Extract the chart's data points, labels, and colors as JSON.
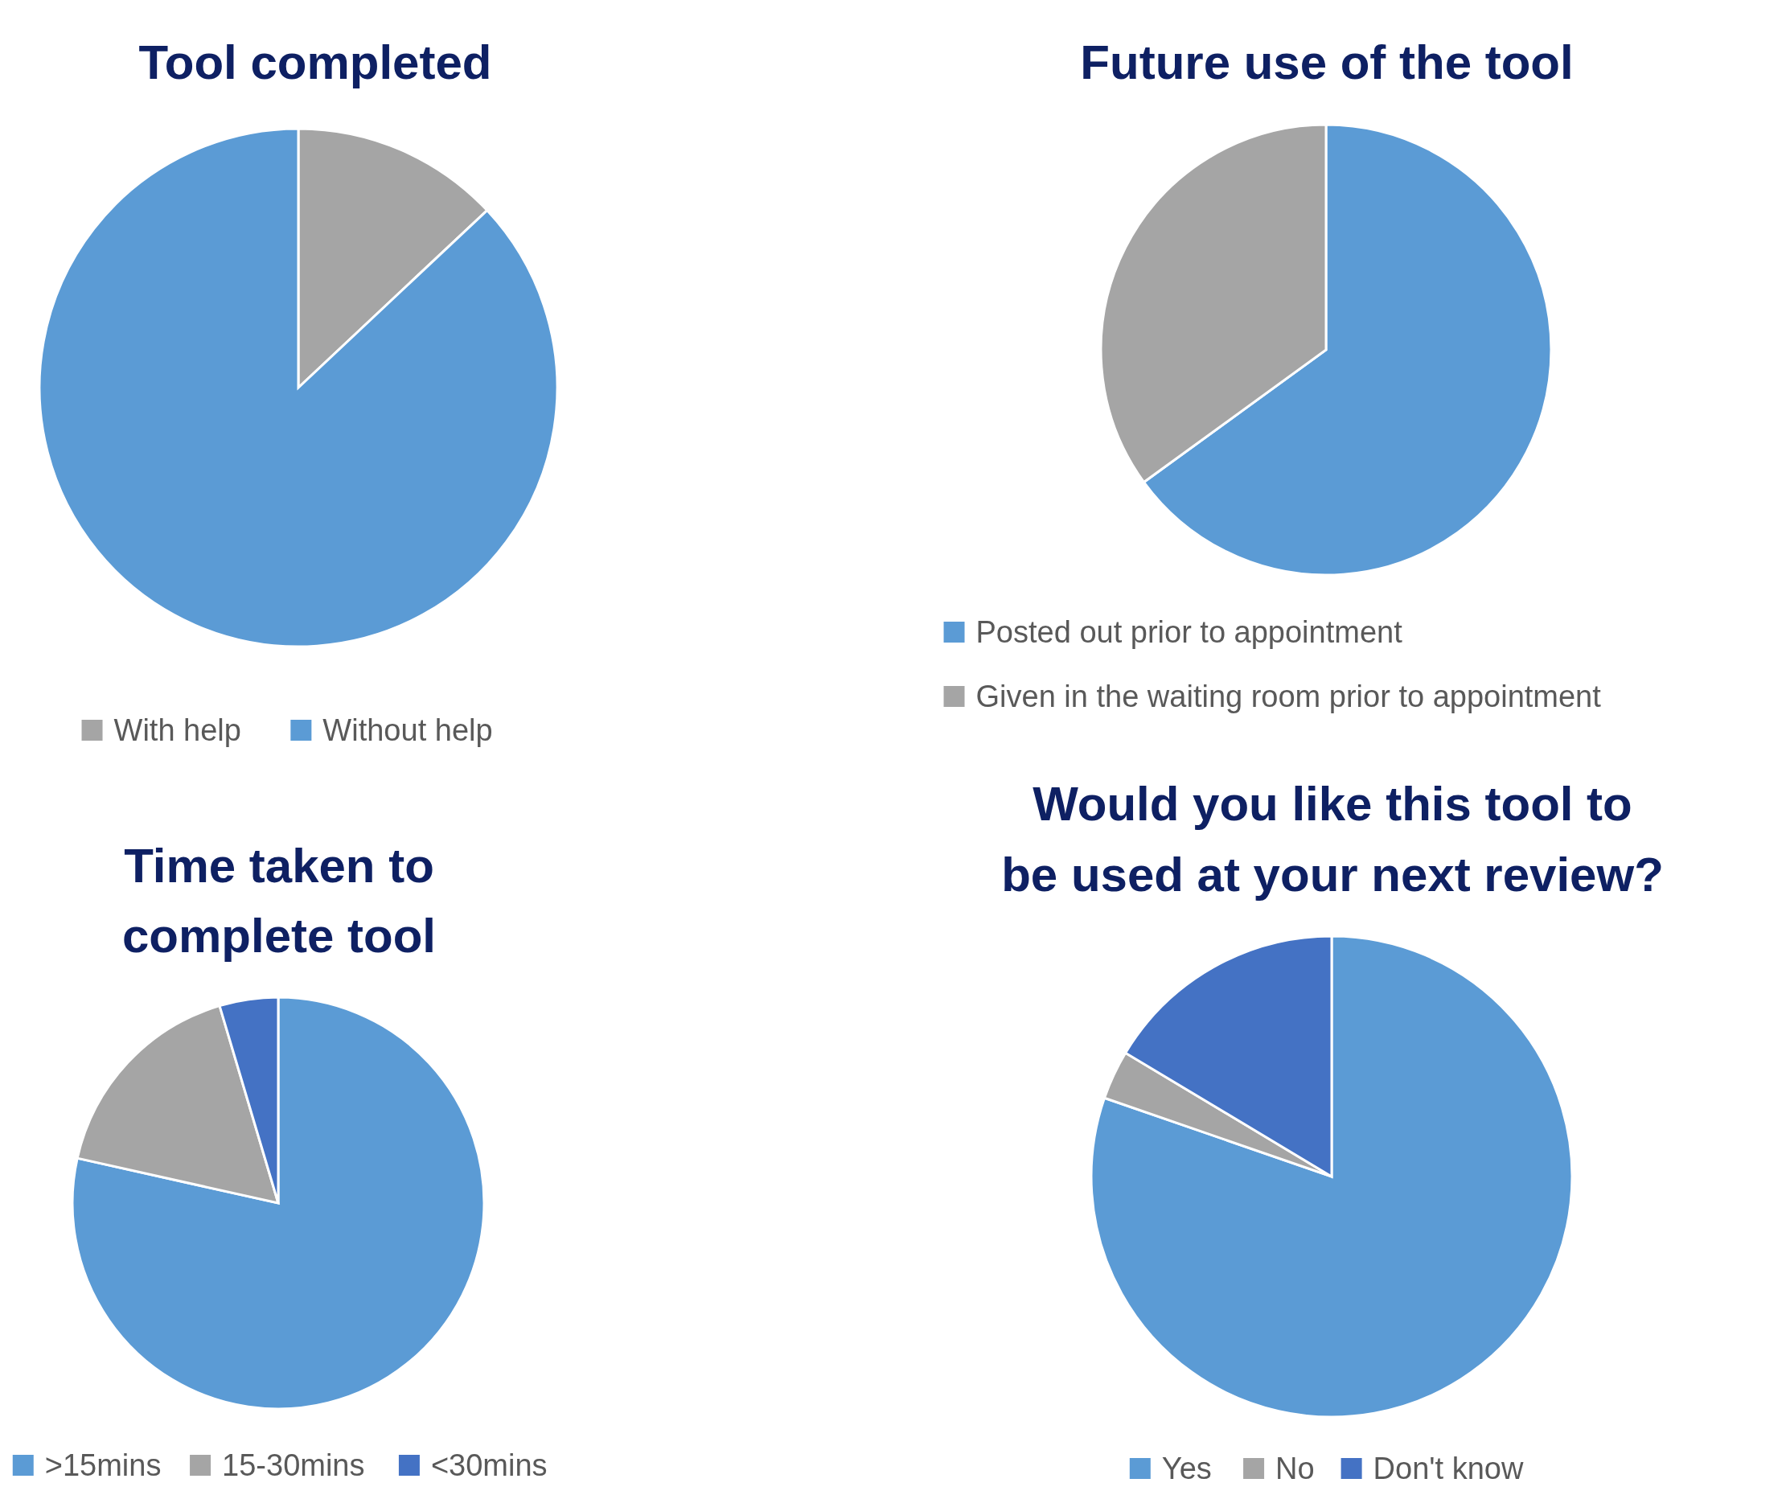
{
  "chart_data": [
    {
      "type": "pie",
      "title": "Tool completed",
      "categories": [
        "With help",
        "Without help"
      ],
      "values": [
        13,
        87
      ],
      "colors": [
        "#a5a5a5",
        "#5b9bd5"
      ],
      "legend": "bottom"
    },
    {
      "type": "pie",
      "title": "Future use of the tool",
      "categories": [
        "Posted out prior to appointment",
        "Given in the waiting room prior to appointment"
      ],
      "values": [
        65,
        35
      ],
      "colors": [
        "#5b9bd5",
        "#a5a5a5"
      ],
      "legend": "bottom"
    },
    {
      "type": "pie",
      "title": "Time taken to complete tool",
      "categories": [
        ">15mins",
        "15-30mins",
        "<30mins"
      ],
      "values": [
        78.5,
        16.9,
        4.6
      ],
      "colors": [
        "#5b9bd5",
        "#a5a5a5",
        "#4472c4"
      ],
      "legend": "bottom"
    },
    {
      "type": "pie",
      "title": "Would you like this tool to be used at your next review?",
      "categories": [
        "Yes",
        "No",
        "Don't know"
      ],
      "values": [
        80.3,
        3.3,
        16.4
      ],
      "colors": [
        "#5b9bd5",
        "#a5a5a5",
        "#4472c4"
      ],
      "legend": "bottom"
    }
  ]
}
